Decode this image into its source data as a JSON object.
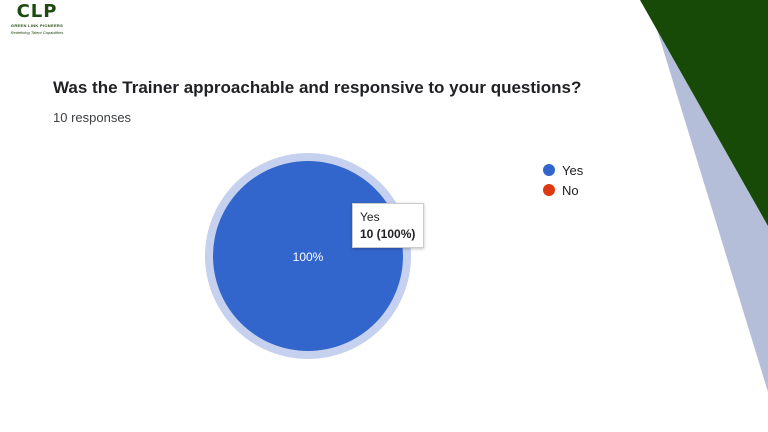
{
  "logo": {
    "text": "CLP",
    "name": "GREEN LINK PIONEERS",
    "tagline": "Redefining Talent Capabilities"
  },
  "question": "Was the Trainer approachable and responsive to your questions?",
  "responses": "10 responses",
  "chart_data": {
    "type": "pie",
    "categories": [
      "Yes",
      "No"
    ],
    "values": [
      10,
      0
    ],
    "colors": [
      "#3366cc",
      "#dc3912"
    ],
    "slice_labels": [
      "100%",
      ""
    ],
    "legend": "right",
    "tooltip": {
      "label": "Yes",
      "value": "10 (100%)"
    }
  },
  "colors": {
    "dark_green": "#174a06",
    "slate": "#b4bed8"
  }
}
